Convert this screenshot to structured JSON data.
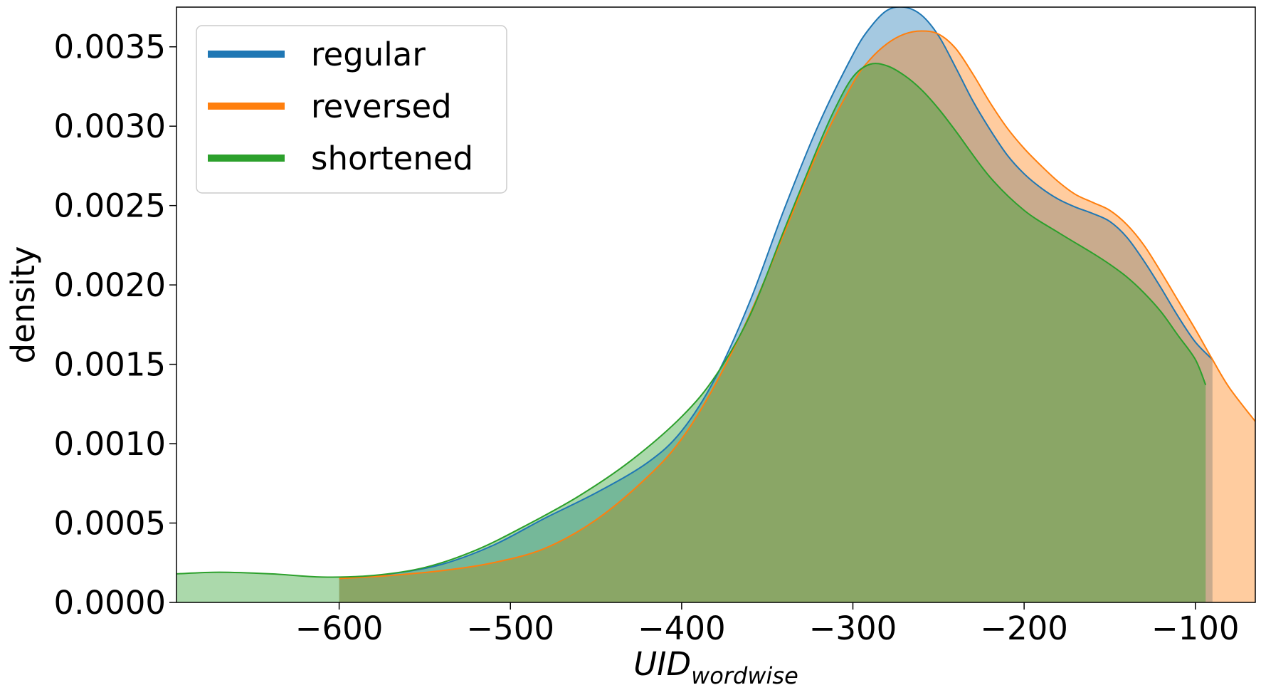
{
  "chart_data": {
    "type": "area",
    "title": "",
    "xlabel": "UID",
    "xlabel_subscript": "wordwise",
    "ylabel": "density",
    "xlim": [
      -695,
      -65
    ],
    "ylim": [
      0,
      0.00375
    ],
    "x_ticks": [
      {
        "value": -600,
        "label": "−600"
      },
      {
        "value": -500,
        "label": "−500"
      },
      {
        "value": -400,
        "label": "−400"
      },
      {
        "value": -300,
        "label": "−300"
      },
      {
        "value": -200,
        "label": "−200"
      },
      {
        "value": -100,
        "label": "−100"
      }
    ],
    "y_ticks": [
      {
        "value": 0.0,
        "label": "0.0000"
      },
      {
        "value": 0.0005,
        "label": "0.0005"
      },
      {
        "value": 0.001,
        "label": "0.0010"
      },
      {
        "value": 0.0015,
        "label": "0.0015"
      },
      {
        "value": 0.002,
        "label": "0.0020"
      },
      {
        "value": 0.0025,
        "label": "0.0025"
      },
      {
        "value": 0.003,
        "label": "0.0030"
      },
      {
        "value": 0.0035,
        "label": "0.0035"
      }
    ],
    "grid": false,
    "legend_position": "top-left",
    "series": [
      {
        "name": "regular",
        "color": "#1f77b4",
        "x": [
          -600,
          -570,
          -540,
          -510,
          -480,
          -450,
          -420,
          -400,
          -380,
          -360,
          -340,
          -320,
          -300,
          -290,
          -280,
          -270,
          -260,
          -250,
          -240,
          -230,
          -220,
          -210,
          -200,
          -190,
          -180,
          -170,
          -160,
          -150,
          -140,
          -130,
          -120,
          -110,
          -100,
          -90
        ],
        "values": [
          0.00015,
          0.00018,
          0.00024,
          0.00036,
          0.00053,
          0.00069,
          0.00088,
          0.00108,
          0.00142,
          0.0019,
          0.00248,
          0.00301,
          0.00345,
          0.00362,
          0.00373,
          0.00375,
          0.0037,
          0.00357,
          0.00337,
          0.00316,
          0.00298,
          0.00282,
          0.0027,
          0.00261,
          0.00254,
          0.00249,
          0.00245,
          0.0024,
          0.0023,
          0.00215,
          0.00198,
          0.0018,
          0.00164,
          0.00153
        ]
      },
      {
        "name": "reversed",
        "color": "#ff7f0e",
        "x": [
          -600,
          -570,
          -540,
          -510,
          -480,
          -450,
          -420,
          -400,
          -380,
          -360,
          -340,
          -320,
          -300,
          -290,
          -280,
          -270,
          -260,
          -250,
          -240,
          -230,
          -220,
          -210,
          -200,
          -190,
          -180,
          -170,
          -160,
          -150,
          -140,
          -130,
          -120,
          -110,
          -100,
          -90,
          -80,
          -65
        ],
        "values": [
          0.00015,
          0.00017,
          0.0002,
          0.00025,
          0.00034,
          0.00052,
          0.00079,
          0.00103,
          0.00138,
          0.00182,
          0.00233,
          0.00285,
          0.00327,
          0.00342,
          0.00352,
          0.00358,
          0.0036,
          0.00358,
          0.00349,
          0.00333,
          0.00315,
          0.00299,
          0.00286,
          0.00275,
          0.00265,
          0.00257,
          0.00252,
          0.00247,
          0.00238,
          0.00225,
          0.00208,
          0.0019,
          0.00172,
          0.00153,
          0.00135,
          0.00114
        ]
      },
      {
        "name": "shortened",
        "color": "#2ca02c",
        "x": [
          -695,
          -670,
          -640,
          -610,
          -580,
          -550,
          -520,
          -490,
          -460,
          -430,
          -400,
          -380,
          -360,
          -340,
          -320,
          -310,
          -300,
          -290,
          -280,
          -270,
          -260,
          -250,
          -240,
          -220,
          -200,
          -180,
          -160,
          -150,
          -140,
          -130,
          -120,
          -110,
          -100,
          -94
        ],
        "values": [
          0.00018,
          0.00019,
          0.00018,
          0.00016,
          0.00017,
          0.00022,
          0.00033,
          0.00049,
          0.00067,
          0.00089,
          0.00117,
          0.00143,
          0.00181,
          0.00235,
          0.00288,
          0.00312,
          0.00331,
          0.00339,
          0.00338,
          0.00332,
          0.00323,
          0.00311,
          0.00297,
          0.00268,
          0.00247,
          0.00233,
          0.0022,
          0.00213,
          0.00205,
          0.00195,
          0.00183,
          0.00168,
          0.00153,
          0.00137
        ]
      }
    ]
  }
}
